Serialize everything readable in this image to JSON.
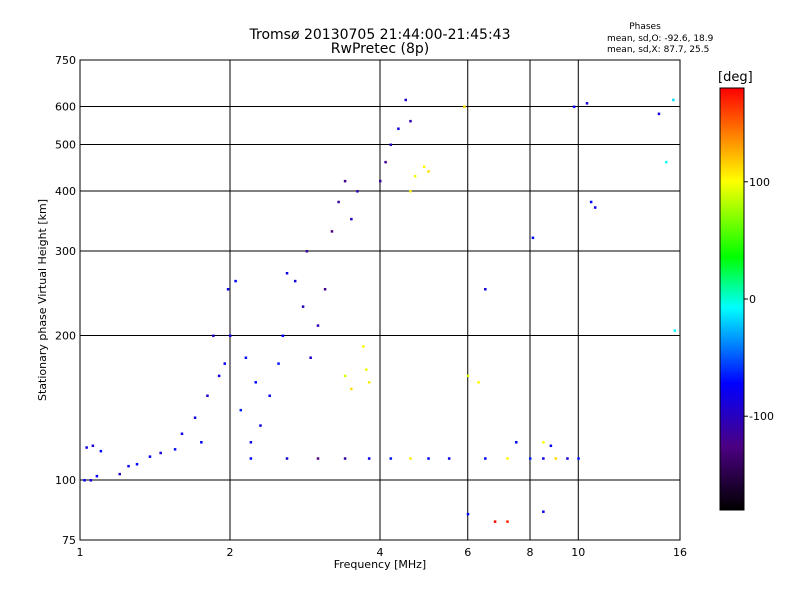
{
  "chart_data": {
    "type": "scatter",
    "title": "Tromsø 20130705 21:44:00-21:45:43",
    "subtitle": "RwPretec (8p)",
    "stats": {
      "heading": "Phases",
      "line1": "mean, sd,O: -92.6, 18.9",
      "line2": "mean, sd,X:  87.7, 25.5"
    },
    "xlabel": "Frequency [MHz]",
    "ylabel": "Stationary phase Virtual Height [km]",
    "x_scale": "log",
    "y_scale": "log",
    "xlim": [
      1,
      16
    ],
    "ylim": [
      75,
      750
    ],
    "x_ticks": [
      1,
      2,
      4,
      6,
      8,
      10,
      16
    ],
    "x_tick_labels": [
      "1",
      "2",
      "4",
      "6",
      "8",
      "10",
      "16"
    ],
    "y_ticks": [
      75,
      100,
      200,
      300,
      400,
      500,
      600,
      750
    ],
    "y_tick_labels": [
      "75",
      "100",
      "200",
      "300",
      "400",
      "500",
      "600",
      "750"
    ],
    "grid": true,
    "colorbar": {
      "unit": "[deg]",
      "range": [
        -180,
        180
      ],
      "ticks": [
        100,
        0,
        -100
      ],
      "tick_labels": [
        "100",
        "0",
        "-100"
      ],
      "colors": [
        "#000000",
        "#4b0082",
        "#0000ff",
        "#00ffff",
        "#00ff00",
        "#ffff00",
        "#ff0000"
      ]
    },
    "series": [
      {
        "points": [
          [
            1.02,
            100,
            -95
          ],
          [
            1.05,
            100,
            -100
          ],
          [
            1.08,
            102,
            -92
          ],
          [
            1.1,
            115,
            -90
          ],
          [
            1.06,
            118,
            -105
          ],
          [
            1.03,
            117,
            -98
          ],
          [
            1.2,
            103,
            -110
          ],
          [
            1.25,
            107,
            -95
          ],
          [
            1.3,
            108,
            -88
          ],
          [
            1.38,
            112,
            -92
          ],
          [
            1.45,
            114,
            -100
          ],
          [
            1.55,
            116,
            -85
          ],
          [
            1.6,
            125,
            -95
          ],
          [
            1.7,
            135,
            -100
          ],
          [
            1.75,
            120,
            -90
          ],
          [
            1.8,
            150,
            -105
          ],
          [
            1.85,
            200,
            -110
          ],
          [
            1.9,
            165,
            -98
          ],
          [
            1.95,
            175,
            -92
          ],
          [
            1.98,
            250,
            -95
          ],
          [
            2.0,
            200,
            -100
          ],
          [
            2.05,
            260,
            -90
          ],
          [
            2.1,
            140,
            -80
          ],
          [
            2.15,
            180,
            -85
          ],
          [
            2.2,
            120,
            -95
          ],
          [
            2.25,
            160,
            -88
          ],
          [
            2.3,
            130,
            -100
          ],
          [
            2.4,
            150,
            -92
          ],
          [
            2.5,
            175,
            -85
          ],
          [
            2.55,
            200,
            -90
          ],
          [
            2.6,
            270,
            -95
          ],
          [
            2.7,
            260,
            -100
          ],
          [
            2.8,
            230,
            -110
          ],
          [
            2.85,
            300,
            -120
          ],
          [
            2.9,
            180,
            -105
          ],
          [
            3.0,
            210,
            -115
          ],
          [
            3.1,
            250,
            -125
          ],
          [
            3.2,
            330,
            -130
          ],
          [
            3.3,
            380,
            -120
          ],
          [
            3.4,
            420,
            -125
          ],
          [
            3.5,
            350,
            -110
          ],
          [
            3.6,
            400,
            -115
          ],
          [
            3.7,
            190,
            100
          ],
          [
            3.75,
            170,
            95
          ],
          [
            3.8,
            160,
            105
          ],
          [
            3.4,
            165,
            90
          ],
          [
            3.5,
            155,
            110
          ],
          [
            4.0,
            420,
            -120
          ],
          [
            4.1,
            460,
            -125
          ],
          [
            4.2,
            500,
            -110
          ],
          [
            4.35,
            540,
            -100
          ],
          [
            4.5,
            620,
            -105
          ],
          [
            4.6,
            560,
            -115
          ],
          [
            4.7,
            430,
            95
          ],
          [
            4.9,
            450,
            100
          ],
          [
            5.0,
            440,
            110
          ],
          [
            4.6,
            400,
            105
          ],
          [
            2.2,
            111,
            -90
          ],
          [
            2.6,
            111,
            -100
          ],
          [
            3.0,
            111,
            -130
          ],
          [
            3.4,
            111,
            -120
          ],
          [
            3.8,
            111,
            -95
          ],
          [
            4.2,
            111,
            -85
          ],
          [
            4.6,
            111,
            105
          ],
          [
            5.0,
            111,
            -90
          ],
          [
            5.5,
            111,
            -95
          ],
          [
            6.5,
            111,
            -90
          ],
          [
            7.2,
            111,
            100
          ],
          [
            8.0,
            111,
            -80
          ],
          [
            8.5,
            111,
            -95
          ],
          [
            9.0,
            111,
            110
          ],
          [
            9.5,
            111,
            -100
          ],
          [
            10.0,
            111,
            -85
          ],
          [
            8.5,
            120,
            100
          ],
          [
            8.8,
            118,
            -95
          ],
          [
            7.5,
            120,
            -90
          ],
          [
            9.8,
            600,
            -95
          ],
          [
            10.4,
            610,
            -100
          ],
          [
            10.6,
            380,
            -90
          ],
          [
            10.8,
            370,
            -95
          ],
          [
            14.5,
            580,
            -100
          ],
          [
            15.0,
            460,
            -10
          ],
          [
            15.5,
            620,
            -20
          ],
          [
            15.6,
            205,
            -10
          ],
          [
            5.9,
            600,
            110
          ],
          [
            6.0,
            165,
            90
          ],
          [
            6.3,
            160,
            100
          ],
          [
            6.5,
            250,
            -100
          ],
          [
            6.8,
            82,
            180
          ],
          [
            7.2,
            82,
            170
          ],
          [
            6.0,
            85,
            -90
          ],
          [
            8.1,
            320,
            -90
          ],
          [
            8.5,
            86,
            -95
          ]
        ]
      }
    ]
  }
}
